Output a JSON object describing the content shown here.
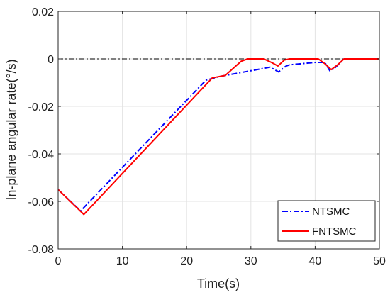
{
  "chart_data": {
    "type": "line",
    "title": "",
    "xlabel": "Time(s)",
    "ylabel": "In-plane angular rate(°/s)",
    "xlim": [
      0,
      50
    ],
    "ylim": [
      -0.08,
      0.02
    ],
    "xticks": [
      0,
      10,
      20,
      30,
      40,
      50
    ],
    "yticks": [
      -0.08,
      -0.06,
      -0.04,
      -0.02,
      0,
      0.02
    ],
    "xtick_labels": [
      "0",
      "10",
      "20",
      "30",
      "40",
      "50"
    ],
    "ytick_labels": [
      "-0.08",
      "-0.06",
      "-0.04",
      "-0.02",
      "0",
      "0.02"
    ],
    "grid": true,
    "legend_position": "bottom-right",
    "reference_line": {
      "y": 0,
      "color": "#000000",
      "style": "dash-dot"
    },
    "series": [
      {
        "name": "NTSMC",
        "color": "#0000ff",
        "style": "dash-dot",
        "x": [
          0,
          3.5,
          23,
          25,
          33,
          34.3,
          35.5,
          36,
          40,
          41.5,
          42.3,
          43,
          44.5,
          50
        ],
        "y": [
          -0.055,
          -0.064,
          -0.009,
          -0.0075,
          -0.0035,
          -0.0055,
          -0.003,
          -0.0025,
          -0.0015,
          -0.0015,
          -0.005,
          -0.004,
          0,
          0
        ]
      },
      {
        "name": "FNTSMC",
        "color": "#ff0000",
        "style": "solid",
        "x": [
          0,
          4,
          24,
          26,
          28.5,
          29.5,
          32,
          33.2,
          34.2,
          35.2,
          36,
          39,
          40.5,
          41.5,
          42.5,
          43.5,
          44.5,
          50
        ],
        "y": [
          -0.055,
          -0.0655,
          -0.008,
          -0.007,
          -0.001,
          0,
          0,
          -0.0015,
          -0.003,
          -0.0005,
          0,
          0,
          0,
          -0.002,
          -0.0045,
          -0.0025,
          0,
          0
        ]
      }
    ]
  }
}
